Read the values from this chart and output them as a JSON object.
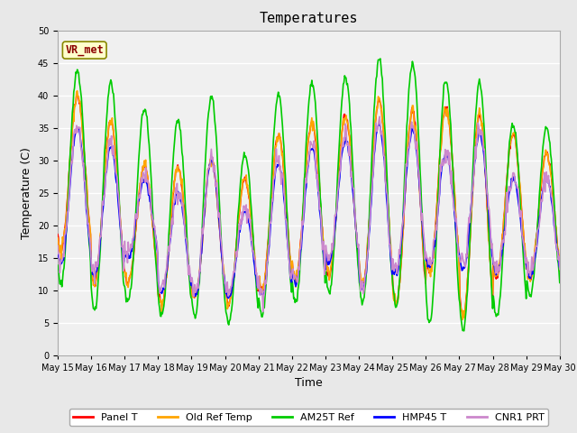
{
  "title": "Temperatures",
  "xlabel": "Time",
  "ylabel": "Temperature (C)",
  "ylim": [
    0,
    50
  ],
  "x_tick_labels": [
    "May 15",
    "May 16",
    "May 17",
    "May 18",
    "May 19",
    "May 20",
    "May 21",
    "May 22",
    "May 23",
    "May 24",
    "May 25",
    "May 26",
    "May 27",
    "May 28",
    "May 29",
    "May 30"
  ],
  "annotation_text": "VR_met",
  "annotation_color": "#8B0000",
  "annotation_bg": "#FFFFCC",
  "series": {
    "Panel T": {
      "color": "#FF0000",
      "lw": 1.2
    },
    "Old Ref Temp": {
      "color": "#FFA500",
      "lw": 1.2
    },
    "AM25T Ref": {
      "color": "#00CC00",
      "lw": 1.2
    },
    "HMP45 T": {
      "color": "#0000FF",
      "lw": 1.2
    },
    "CNR1 PRT": {
      "color": "#CC88CC",
      "lw": 1.2
    }
  },
  "bg_color": "#E8E8E8",
  "plot_bg_color": "#F0F0F0",
  "grid_color": "#FFFFFF",
  "title_fontsize": 11,
  "tick_fontsize": 7,
  "label_fontsize": 9,
  "n_days": 15,
  "pts_per_day": 48,
  "am25t_peaks": [
    44,
    42,
    38,
    36,
    40,
    31,
    40,
    42,
    43,
    45.5,
    45,
    42.5,
    42,
    35.5,
    35
  ],
  "am25t_mins": [
    11,
    7,
    8,
    6,
    6,
    5,
    6,
    8,
    9.5,
    8,
    7.5,
    5,
    4,
    6,
    9
  ],
  "panel_peaks": [
    40,
    36,
    29,
    29,
    30,
    27,
    34,
    36,
    37,
    39,
    37.5,
    38,
    37,
    34,
    31
  ],
  "panel_mins": [
    16,
    11,
    11,
    8,
    9,
    8,
    10,
    12,
    12,
    11,
    8,
    12.5,
    6,
    12,
    12
  ],
  "hmp45_peaks": [
    35,
    32,
    27,
    25,
    30,
    22,
    29.5,
    32,
    33,
    35.5,
    34.5,
    31,
    34,
    27,
    27
  ],
  "hmp45_mins": [
    14,
    12,
    15,
    9.5,
    9,
    9,
    9,
    11,
    14,
    10,
    12.5,
    13.5,
    13,
    12.5,
    12
  ]
}
